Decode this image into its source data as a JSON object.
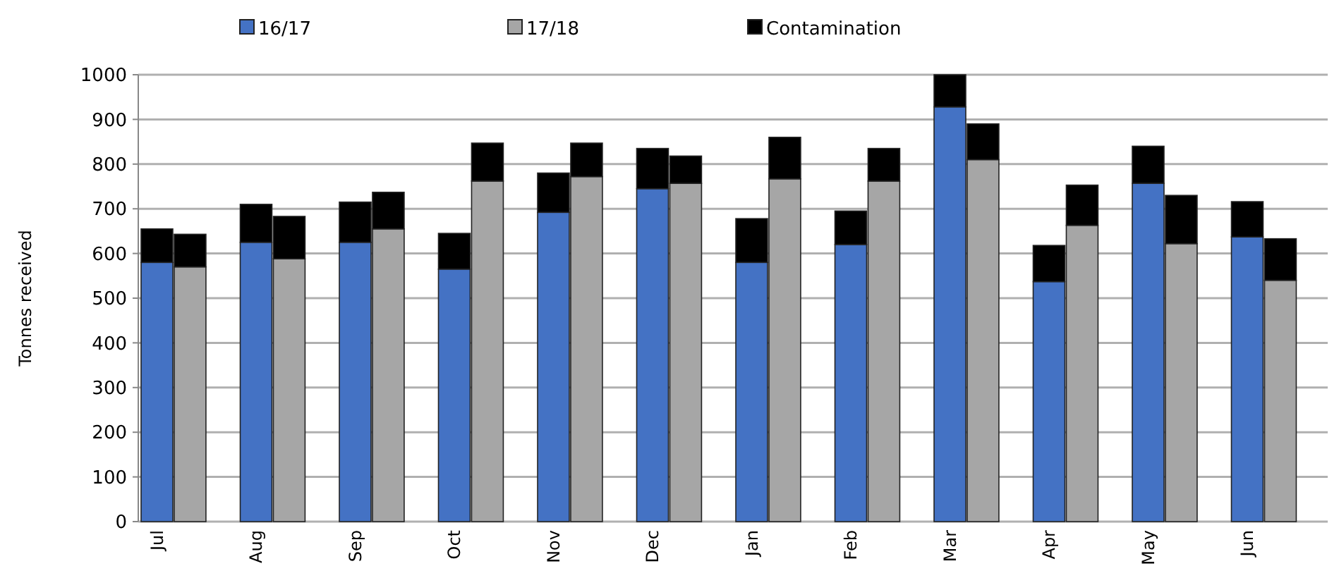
{
  "chart_data": {
    "type": "bar",
    "stacked": true,
    "ylabel": "Tonnes received",
    "categories": [
      "Jul",
      null,
      "Aug",
      null,
      "Sep",
      null,
      "Oct",
      null,
      "Nov",
      null,
      "Dec",
      null,
      "Jan",
      null,
      "Feb",
      null,
      "Mar",
      null,
      "Apr",
      null,
      "May",
      null,
      "Jun",
      null
    ],
    "series": [
      {
        "name": "16/17",
        "color": "#4472c4",
        "values": [
          580,
          null,
          625,
          null,
          625,
          null,
          565,
          null,
          692,
          null,
          745,
          null,
          580,
          null,
          620,
          null,
          928,
          null,
          537,
          null,
          757,
          null,
          637,
          null
        ]
      },
      {
        "name": "17/18",
        "color": "#a6a6a6",
        "values": [
          null,
          570,
          null,
          588,
          null,
          655,
          null,
          762,
          null,
          772,
          null,
          757,
          null,
          767,
          null,
          762,
          null,
          810,
          null,
          663,
          null,
          622,
          null,
          540
        ]
      },
      {
        "name": "Contamination",
        "color": "#000000",
        "values": [
          75,
          73,
          85,
          95,
          90,
          82,
          80,
          85,
          88,
          75,
          90,
          61,
          98,
          93,
          75,
          73,
          72,
          80,
          81,
          90,
          83,
          108,
          79,
          93
        ]
      }
    ],
    "ylim": [
      0,
      1000
    ],
    "yticks": [
      0,
      100,
      200,
      300,
      400,
      500,
      600,
      700,
      800,
      900,
      1000
    ],
    "grid": "y",
    "legend": "top"
  }
}
